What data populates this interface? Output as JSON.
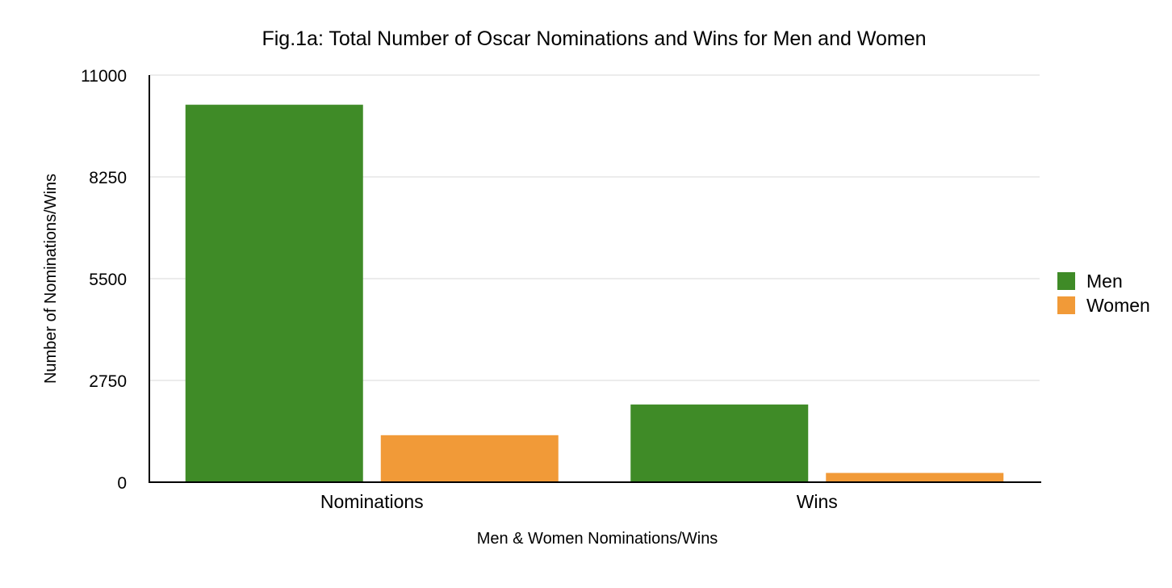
{
  "chart_data": {
    "type": "bar",
    "title": "Fig.1a: Total Number of Oscar Nominations and Wins for Men and Women",
    "xlabel": "Men & Women Nominations/Wins",
    "ylabel": "Number of Nominations/Wins",
    "categories": [
      "Nominations",
      "Wins"
    ],
    "series": [
      {
        "name": "Men",
        "color": "#3f8b27",
        "values": [
          10200,
          2100
        ]
      },
      {
        "name": "Women",
        "color": "#f19a38",
        "values": [
          1270,
          250
        ]
      }
    ],
    "ylim": [
      0,
      11000
    ],
    "yticks": [
      0,
      2750,
      5500,
      8250,
      11000
    ],
    "ytick_labels": [
      "0",
      "2750",
      "5500",
      "8250",
      "11000"
    ],
    "grid": true,
    "legend_position": "right"
  }
}
